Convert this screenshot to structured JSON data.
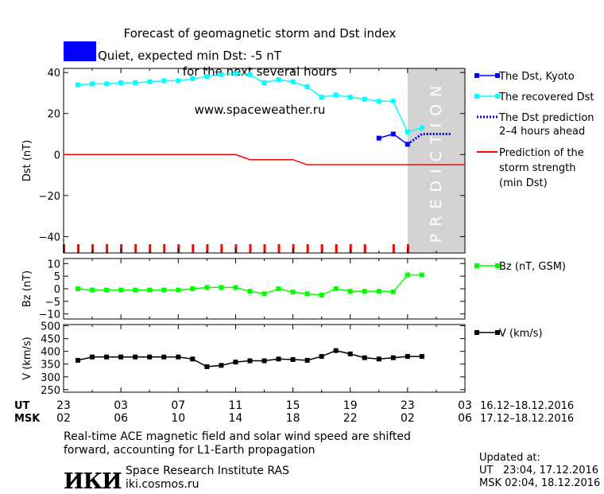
{
  "header": {
    "title_lines": [
      "Forecast of geomagnetic storm and Dst index",
      "for the next several hours",
      "www.spaceweather.ru"
    ],
    "status_text": "Quiet, expected min Dst: -5 nT",
    "status_color": "#0000ff"
  },
  "chart_data": [
    {
      "type": "line",
      "panel": "dst",
      "ylabel": "Dst (nT)",
      "ylim": [
        -48,
        42
      ],
      "yticks": [
        40,
        20,
        0,
        -20,
        -40
      ],
      "x_unit": "hours since 23:00 UT 16.12.2016",
      "xlim": [
        0,
        28
      ],
      "shaded_region": {
        "label": "PREDICTION",
        "x": [
          24,
          28
        ],
        "color": "#d3d3d3"
      },
      "series": [
        {
          "name": "The Dst, Kyoto",
          "color": "#0000ff",
          "style": "solid-square",
          "x": [
            22,
            23,
            24
          ],
          "values": [
            8,
            10,
            5
          ]
        },
        {
          "name": "The recovered Dst",
          "color": "#00ffff",
          "style": "solid-square",
          "x": [
            1,
            2,
            3,
            4,
            5,
            6,
            7,
            8,
            9,
            10,
            11,
            12,
            13,
            14,
            15,
            16,
            17,
            18,
            19,
            20,
            21,
            22,
            23,
            24,
            25
          ],
          "values": [
            34,
            34.5,
            34.5,
            35,
            35,
            35.5,
            36,
            36,
            37,
            38,
            39,
            39.5,
            39,
            35,
            36.5,
            35.5,
            33,
            28,
            29,
            28,
            27,
            26,
            26,
            11,
            13
          ]
        },
        {
          "name": "The Dst prediction 2-4 hours ahead",
          "color": "#0000ff",
          "style": "dotted",
          "x": [
            24,
            25,
            27
          ],
          "values": [
            5,
            10,
            10
          ]
        },
        {
          "name": "Prediction of the storm strength (min Dst)",
          "color": "#ff0000",
          "style": "solid",
          "x": [
            0,
            12,
            13,
            16,
            17,
            28
          ],
          "values": [
            0,
            0,
            -2.5,
            -2.5,
            -5,
            -5
          ]
        }
      ],
      "tick_marks": {
        "color": "#ff0000",
        "x": [
          0,
          1,
          2,
          3,
          4,
          5,
          6,
          7,
          8,
          9,
          10,
          11,
          12,
          13,
          14,
          15,
          16,
          17,
          18,
          19,
          20,
          21,
          23,
          24
        ]
      },
      "legend_placement": "right"
    },
    {
      "type": "line",
      "panel": "bz",
      "ylabel": "Bz (nT)",
      "ylim": [
        -12,
        12
      ],
      "yticks": [
        10,
        5,
        0,
        -5,
        -10
      ],
      "series": [
        {
          "name": "Bz (nT, GSM)",
          "color": "#00ff00",
          "x": [
            1,
            2,
            3,
            4,
            5,
            6,
            7,
            8,
            9,
            10,
            11,
            12,
            13,
            14,
            15,
            16,
            17,
            18,
            19,
            20,
            21,
            22,
            23,
            24,
            25
          ],
          "values": [
            0,
            -0.5,
            -0.5,
            -0.5,
            -0.5,
            -0.5,
            -0.5,
            -0.5,
            0,
            0.5,
            0.5,
            0.5,
            -1,
            -2,
            0,
            -1.3,
            -2,
            -2.5,
            0,
            -1,
            -1,
            -1,
            -1.2,
            5.5,
            5.5
          ]
        }
      ]
    },
    {
      "type": "line",
      "panel": "v",
      "ylabel": "V (km/s)",
      "ylim": [
        240,
        505
      ],
      "yticks": [
        500,
        450,
        400,
        350,
        300,
        250
      ],
      "series": [
        {
          "name": "V (km/s)",
          "color": "#000000",
          "x": [
            1,
            2,
            3,
            4,
            5,
            6,
            7,
            8,
            9,
            10,
            11,
            12,
            13,
            14,
            15,
            16,
            17,
            18,
            19,
            20,
            21,
            22,
            23,
            24,
            25
          ],
          "values": [
            365,
            378,
            378,
            378,
            378,
            378,
            378,
            378,
            370,
            340,
            345,
            358,
            363,
            363,
            370,
            368,
            365,
            380,
            403,
            390,
            375,
            370,
            375,
            380,
            380
          ]
        }
      ]
    }
  ],
  "axis": {
    "x_positions": [
      0,
      4,
      8,
      12,
      16,
      20,
      24,
      28
    ],
    "ut_label": "UT",
    "msk_label": "MSK",
    "ut_ticks": [
      "23",
      "03",
      "07",
      "11",
      "15",
      "19",
      "23",
      "03"
    ],
    "msk_ticks": [
      "02",
      "06",
      "10",
      "14",
      "18",
      "22",
      "02",
      "06"
    ],
    "ut_range": "16.12-18.12.2016",
    "msk_range": "17.12-18.12.2016"
  },
  "footer": {
    "note_line1": "Real-time ACE magnetic field and solar wind speed are shifted",
    "note_line2": "forward, accounting for L1-Earth propagation",
    "logo_text": "ИКИ",
    "institute": "Space Research Institute RAS",
    "website": "iki.cosmos.ru",
    "updated_label": "Updated at:",
    "updated_ut": "UT   23:04, 17.12.2016",
    "updated_msk": "MSK 02:04, 18.12.2016"
  }
}
